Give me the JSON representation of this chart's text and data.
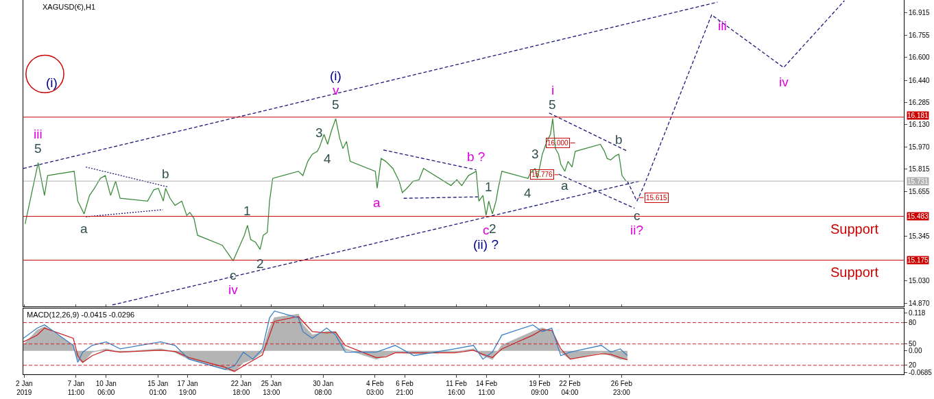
{
  "chart_data": [
    {
      "type": "line",
      "title": "XAGUSD(€),H1",
      "xlim": [
        "2019-01-02T14:00",
        "2019-03-25T02:00"
      ],
      "xticks": [
        {
          "value": "2019-01-02T16:00",
          "label": null
        },
        {
          "value": "2019-01-07T11:00",
          "label": null
        },
        {
          "value": "2019-01-10T06:00",
          "label": null
        },
        {
          "value": "2019-01-15T01:00",
          "label": null
        },
        {
          "value": "2019-01-17T19:00",
          "label": null
        },
        {
          "value": "2019-01-22T18:00",
          "label": null
        },
        {
          "value": "2019-01-25T13:00",
          "label": null
        },
        {
          "value": "2019-01-30T08:00",
          "label": null
        },
        {
          "value": "2019-02-04T03:00",
          "label": null
        },
        {
          "value": "2019-02-06T21:00",
          "label": null
        },
        {
          "value": "2019-02-11T16:00",
          "label": null
        },
        {
          "value": "2019-02-14T11:00",
          "label": null
        },
        {
          "value": "2019-02-19T09:00",
          "label": null
        },
        {
          "value": "2019-02-22T04:00",
          "label": null
        },
        {
          "value": "2019-02-26T23:00",
          "label": null
        }
      ],
      "ylim": [
        14.851,
        17.005
      ],
      "yticks": [
        {
          "value": 16.915,
          "label": "16.915"
        },
        {
          "value": 16.755,
          "label": "16.755"
        },
        {
          "value": 16.6,
          "label": "16.600"
        },
        {
          "value": 16.44,
          "label": "16.440"
        },
        {
          "value": 16.285,
          "label": "16.285"
        },
        {
          "value": 16.13,
          "label": "16.130"
        },
        {
          "value": 15.97,
          "label": "15.970"
        },
        {
          "value": 15.815,
          "label": "15.815"
        },
        {
          "value": 15.655,
          "label": "15.655"
        },
        {
          "value": 15.345,
          "label": "15.345"
        },
        {
          "value": 15.03,
          "label": "15.030"
        },
        {
          "value": 14.87,
          "label": "14.870"
        }
      ],
      "tick_labels": "y",
      "line_style": "solid",
      "marker": "none",
      "series": [
        {
          "color": "#3c8c3c",
          "x": [
            "2019-01-02T18:00",
            "2019-01-03T23:00",
            "2019-01-04T13:00",
            "2019-01-04T20:00",
            "2019-01-07T07:00",
            "2019-01-07T15:00",
            "2019-01-08T05:00",
            "2019-01-08T17:00",
            "2019-01-09T04:00",
            "2019-01-09T17:00",
            "2019-01-10T04:00",
            "2019-01-10T16:00",
            "2019-01-11T03:00",
            "2019-01-11T13:00",
            "2019-01-14T02:00",
            "2019-01-14T16:00",
            "2019-01-15T02:00",
            "2019-01-15T13:00",
            "2019-01-15T18:00",
            "2019-01-16T04:00",
            "2019-01-16T15:00",
            "2019-01-17T06:00",
            "2019-01-17T17:00",
            "2019-01-18T00:00",
            "2019-01-18T09:00",
            "2019-01-18T17:00",
            "2019-01-21T00:00",
            "2019-01-21T11:00",
            "2019-01-22T00:00",
            "2019-01-22T11:00",
            "2019-01-23T01:00",
            "2019-01-23T08:00",
            "2019-01-23T15:00",
            "2019-01-24T02:00",
            "2019-01-24T12:00",
            "2019-01-24T19:00",
            "2019-01-25T04:00",
            "2019-01-25T09:00",
            "2019-01-25T16:00",
            "2019-01-28T01:00",
            "2019-01-28T11:00",
            "2019-01-28T22:00",
            "2019-01-29T08:00",
            "2019-01-29T19:00",
            "2019-01-30T00:00",
            "2019-01-30T10:00",
            "2019-01-30T18:00",
            "2019-01-31T02:00",
            "2019-01-31T12:00",
            "2019-01-31T21:00",
            "2019-02-01T04:00",
            "2019-02-01T12:00",
            "2019-02-01T20:00",
            "2019-02-04T04:00",
            "2019-02-04T08:00",
            "2019-02-04T17:00",
            "2019-02-05T03:00",
            "2019-02-05T19:00",
            "2019-02-06T09:00",
            "2019-02-06T16:00",
            "2019-02-07T02:00",
            "2019-02-07T16:00",
            "2019-02-08T05:00",
            "2019-02-08T15:00",
            "2019-02-11T04:00",
            "2019-02-11T17:00",
            "2019-02-12T04:00",
            "2019-02-12T19:00",
            "2019-02-13T12:00",
            "2019-02-13T18:00",
            "2019-02-14T03:00",
            "2019-02-14T10:00",
            "2019-02-14T16:00",
            "2019-02-15T00:00",
            "2019-02-15T08:00",
            "2019-02-15T13:00",
            "2019-02-15T21:00",
            "2019-02-18T07:00",
            "2019-02-18T13:00",
            "2019-02-18T23:00",
            "2019-02-19T04:00",
            "2019-02-19T15:00",
            "2019-02-20T01:00",
            "2019-02-20T09:00",
            "2019-02-20T14:00",
            "2019-02-20T20:00",
            "2019-02-21T03:00",
            "2019-02-21T08:00",
            "2019-02-21T17:00",
            "2019-02-22T00:00",
            "2019-02-22T09:00",
            "2019-02-22T16:00",
            "2019-02-25T00:00",
            "2019-02-25T09:00",
            "2019-02-25T15:00",
            "2019-02-25T23:00",
            "2019-02-26T10:00",
            "2019-02-26T17:00",
            "2019-02-27T00:00",
            "2019-02-27T09:00"
          ],
          "values": [
            15.43,
            15.86,
            15.63,
            15.77,
            15.8,
            15.59,
            15.5,
            15.63,
            15.68,
            15.75,
            15.77,
            15.63,
            15.73,
            15.61,
            15.59,
            15.67,
            15.68,
            15.59,
            15.68,
            15.61,
            15.56,
            15.59,
            15.49,
            15.51,
            15.47,
            15.35,
            15.28,
            15.23,
            15.17,
            15.25,
            15.35,
            15.42,
            15.32,
            15.3,
            15.25,
            15.35,
            15.37,
            15.59,
            15.75,
            15.8,
            15.77,
            15.87,
            15.92,
            15.94,
            15.97,
            16.06,
            15.99,
            16.08,
            16.17,
            16.03,
            15.96,
            16.01,
            15.87,
            15.8,
            15.68,
            15.89,
            15.87,
            15.82,
            15.73,
            15.65,
            15.68,
            15.73,
            15.74,
            15.82,
            15.7,
            15.74,
            15.7,
            15.77,
            15.8,
            15.59,
            15.63,
            15.49,
            15.59,
            15.5,
            15.59,
            15.68,
            15.8,
            15.75,
            15.79,
            15.82,
            15.75,
            15.92,
            16.01,
            16.06,
            16.17,
            15.96,
            15.92,
            15.85,
            15.8,
            15.87,
            15.83,
            15.94,
            15.99,
            15.94,
            15.89,
            15.88,
            15.91,
            15.92,
            15.77,
            15.73
          ]
        },
        {
          "color": "#1a1a7a",
          "line_style": "dashed",
          "x": [
            "2019-01-02T14:00",
            "2019-03-07T20:00"
          ],
          "values": [
            15.82,
            16.99
          ]
        },
        {
          "color": "#1a1a7a",
          "line_style": "dashed",
          "x": [
            "2019-01-10T20:00",
            "2019-02-28T14:00"
          ],
          "values": [
            14.86,
            15.73
          ]
        },
        {
          "color": "#1a1a7a",
          "line_style": "dotted",
          "x": [
            "2019-01-08T09:00",
            "2019-01-15T23:00"
          ],
          "values": [
            15.83,
            15.69
          ]
        },
        {
          "color": "#1a1a7a",
          "line_style": "dotted",
          "x": [
            "2019-01-08T09:00",
            "2019-01-15T12:00"
          ],
          "values": [
            15.48,
            15.53
          ]
        },
        {
          "color": "#1a1a7a",
          "line_style": "dashed",
          "x": [
            "2019-02-04T22:00",
            "2019-02-13T12:00"
          ],
          "values": [
            15.95,
            15.81
          ]
        },
        {
          "color": "#1a1a7a",
          "line_style": "dashed",
          "x": [
            "2019-02-06T19:00",
            "2019-02-13T16:00"
          ],
          "values": [
            15.61,
            15.62
          ]
        },
        {
          "color": "#1a1a7a",
          "line_style": "dashed",
          "x": [
            "2019-02-20T06:00",
            "2019-02-27T13:00"
          ],
          "values": [
            16.21,
            15.94
          ]
        },
        {
          "color": "#1a1a7a",
          "line_style": "dashed",
          "x": [
            "2019-02-21T03:00",
            "2019-02-28T04:00"
          ],
          "values": [
            15.78,
            15.54
          ]
        },
        {
          "color": "#1a1a7a",
          "line_style": "dashed",
          "x": [
            "2019-02-27T12:00",
            "2019-02-28T09:00",
            "2019-03-01T01:00",
            "2019-03-07T07:00",
            "2019-03-13T23:00",
            "2019-03-19T14:00"
          ],
          "values": [
            15.73,
            15.59,
            15.7,
            16.9,
            16.53,
            17.0
          ]
        },
        {
          "color": "#cc0000",
          "x": [
            "2019-02-22T05:00",
            "2019-02-22T16:00"
          ],
          "values": [
            16.0,
            16.0
          ]
        },
        {
          "color": "#cc0000",
          "x": [
            "2019-02-20T18:00",
            "2019-02-21T03:00"
          ],
          "values": [
            15.776,
            15.776
          ]
        },
        {
          "color": "#cc0000",
          "x": [
            "2019-02-28T13:00",
            "2019-03-01T00:00"
          ],
          "values": [
            15.615,
            15.615
          ]
        }
      ],
      "ref_lines": [
        {
          "axis": "y",
          "value": 16.181,
          "label": "16.181",
          "color": "#cc0000"
        },
        {
          "axis": "y",
          "value": 15.483,
          "label": "15.483",
          "color": "#cc0000"
        },
        {
          "axis": "y",
          "value": 15.175,
          "label": "15.175",
          "color": "#cc0000"
        },
        {
          "axis": "y",
          "value": 15.731,
          "label": "15.731",
          "color": "#b0b0b0"
        }
      ],
      "annotations": [
        {
          "text": "5",
          "x": "2019-01-03T23:00",
          "y": 15.86
        },
        {
          "text": "iii",
          "x": "2019-01-03T23:00",
          "y": 15.86
        },
        {
          "text": "a",
          "x": "2019-01-08T05:00",
          "y": 15.5
        },
        {
          "text": "b",
          "x": "2019-01-15T18:00",
          "y": 15.68
        },
        {
          "text": "1",
          "x": "2019-01-23T08:00",
          "y": 15.42
        },
        {
          "text": "2",
          "x": "2019-01-24T12:00",
          "y": 15.25
        },
        {
          "text": "c",
          "x": "2019-01-22T00:00",
          "y": 15.17
        },
        {
          "text": "iv",
          "x": "2019-01-22T00:00",
          "y": 15.17
        },
        {
          "text": "3",
          "x": "2019-01-30T00:00",
          "y": 15.97
        },
        {
          "text": "4",
          "x": "2019-01-30T18:00",
          "y": 15.99
        },
        {
          "text": "5",
          "x": "2019-01-31T12:00",
          "y": 16.17
        },
        {
          "text": "v",
          "x": "2019-01-31T12:00",
          "y": 16.17
        },
        {
          "text": "(i)",
          "x": "2019-01-31T12:00",
          "y": 16.17
        },
        {
          "text": "a",
          "x": "2019-02-04T08:00",
          "y": 15.68
        },
        {
          "text": "b ?",
          "x": "2019-02-13T12:00",
          "y": 15.8
        },
        {
          "text": "1",
          "x": "2019-02-14T16:00",
          "y": 15.59
        },
        {
          "text": "2",
          "x": "2019-02-15T00:00",
          "y": 15.5
        },
        {
          "text": "c",
          "x": "2019-02-14T10:00",
          "y": 15.49
        },
        {
          "text": "(ii) ?",
          "x": "2019-02-14T10:00",
          "y": 15.49
        },
        {
          "text": "3",
          "x": "2019-02-18T23:00",
          "y": 15.82
        },
        {
          "text": "4",
          "x": "2019-02-18T07:00",
          "y": 15.75
        },
        {
          "text": "5",
          "x": "2019-02-20T14:00",
          "y": 16.17
        },
        {
          "text": "i",
          "x": "2019-02-20T14:00",
          "y": 16.17
        },
        {
          "text": "a",
          "x": "2019-02-21T17:00",
          "y": 15.8
        },
        {
          "text": "b",
          "x": "2019-02-26T17:00",
          "y": 15.92
        },
        {
          "text": "c",
          "x": "2019-02-28T09:00",
          "y": 15.59
        },
        {
          "text": "ii?",
          "x": "2019-02-28T09:00",
          "y": 15.59
        },
        {
          "text": "iii",
          "x": "2019-03-07T07:00",
          "y": 16.9
        },
        {
          "text": "iv",
          "x": "2019-03-13T23:00",
          "y": 16.53
        },
        {
          "text": "16.000",
          "x": "2019-02-22T05:00",
          "y": 16.0
        },
        {
          "text": "15.776",
          "x": "2019-02-20T18:00",
          "y": 15.776
        },
        {
          "text": "15.615",
          "x": "2019-03-01T00:00",
          "y": 15.615
        },
        {
          "text": "Support",
          "x": "2019-03-20T13:00",
          "y": 15.483
        },
        {
          "text": "Support",
          "x": "2019-03-20T13:00",
          "y": 15.175
        },
        "(i)"
      ]
    },
    {
      "type": "line",
      "title": "MACD(12,26,9) -0.0415 -0.0296",
      "xlim": [
        "2019-01-02T14:00",
        "2019-03-25T02:00"
      ],
      "xticks": [
        {
          "value": "2019-01-02T16:00",
          "label": "2 Jan 2019"
        },
        {
          "value": "2019-01-07T11:00",
          "label": "7 Jan 11:00"
        },
        {
          "value": "2019-01-10T06:00",
          "label": "10 Jan 06:00"
        },
        {
          "value": "2019-01-15T01:00",
          "label": "15 Jan 01:00"
        },
        {
          "value": "2019-01-17T19:00",
          "label": "17 Jan 19:00"
        },
        {
          "value": "2019-01-22T18:00",
          "label": "22 Jan 18:00"
        },
        {
          "value": "2019-01-25T13:00",
          "label": "25 Jan 13:00"
        },
        {
          "value": "2019-01-30T08:00",
          "label": "30 Jan 08:00"
        },
        {
          "value": "2019-02-04T03:00",
          "label": "4 Feb 03:00"
        },
        {
          "value": "2019-02-06T21:00",
          "label": "6 Feb 21:00"
        },
        {
          "value": "2019-02-11T16:00",
          "label": "11 Feb 16:00"
        },
        {
          "value": "2019-02-14T11:00",
          "label": "14 Feb 11:00"
        },
        {
          "value": "2019-02-19T09:00",
          "label": "19 Feb 09:00"
        },
        {
          "value": "2019-02-22T04:00",
          "label": "22 Feb 04:00"
        },
        {
          "value": "2019-02-26T23:00",
          "label": "26 Feb 23:00"
        }
      ],
      "ylim": [
        -0.0728,
        0.131
      ],
      "yticks": [
        {
          "value": 0.118,
          "label": "0.118"
        },
        {
          "value": 0,
          "label": "0.00"
        },
        {
          "value": -0.0685,
          "label": "-0.0685"
        }
      ],
      "y2lim": [
        7.5,
        99.4
      ],
      "y2ticks": [
        80,
        50,
        20
      ],
      "line_style": "solid",
      "marker": "none",
      "x": [
        "2019-01-02T14:00",
        "2019-01-03T21:00",
        "2019-01-04T13:00",
        "2019-01-07T05:00",
        "2019-01-07T15:00",
        "2019-01-08T02:00",
        "2019-01-08T23:00",
        "2019-01-10T06:00",
        "2019-01-11T13:00",
        "2019-01-15T07:00",
        "2019-01-16T15:00",
        "2019-01-17T22:00",
        "2019-01-21T06:00",
        "2019-01-22T03:00",
        "2019-01-22T23:00",
        "2019-01-23T20:00",
        "2019-01-24T17:00",
        "2019-01-25T09:00",
        "2019-01-25T20:00",
        "2019-01-28T01:00",
        "2019-01-28T11:00",
        "2019-01-29T08:00",
        "2019-01-30T16:00",
        "2019-01-31T12:00",
        "2019-02-01T09:00",
        "2019-02-04T06:00",
        "2019-02-05T03:00",
        "2019-02-06T00:00",
        "2019-02-07T18:00",
        "2019-02-11T12:00",
        "2019-02-13T06:00",
        "2019-02-14T03:00",
        "2019-02-15T00:00",
        "2019-02-15T21:00",
        "2019-02-18T18:00",
        "2019-02-19T15:00",
        "2019-02-20T12:00",
        "2019-02-21T08:00",
        "2019-02-22T05:00",
        "2019-02-25T02:00",
        "2019-02-25T23:00",
        "2019-02-26T20:00",
        "2019-02-27T12:00"
      ],
      "series": [
        {
          "type": "area",
          "color": "#b4b4b4",
          "values": [
            0.017,
            0.064,
            0.075,
            0.017,
            -0.026,
            -0.036,
            -0.004,
            0.006,
            -0.004,
            0.006,
            -0.004,
            -0.026,
            -0.058,
            -0.064,
            -0.036,
            -0.026,
            -0.004,
            0.071,
            0.103,
            0.114,
            0.081,
            0.049,
            0.06,
            0.06,
            0.006,
            -0.026,
            -0.015,
            -0.004,
            -0.009,
            -0.004,
            0.006,
            -0.015,
            -0.026,
            0.017,
            0.06,
            0.071,
            0.06,
            -0.004,
            -0.026,
            -0.004,
            -0.015,
            -0.026,
            -0.026
          ]
        },
        {
          "color": "#cc2222",
          "values": [
            0.028,
            0.049,
            0.071,
            0.039,
            -0.015,
            -0.036,
            -0.015,
            0.002,
            -0.004,
            0.002,
            -0.002,
            -0.021,
            -0.051,
            -0.064,
            -0.047,
            -0.03,
            -0.013,
            0.049,
            0.092,
            0.107,
            0.092,
            0.06,
            0.056,
            0.058,
            0.017,
            -0.021,
            -0.019,
            -0.006,
            -0.006,
            -0.006,
            0.002,
            -0.011,
            -0.021,
            0.006,
            0.049,
            0.066,
            0.064,
            0.006,
            -0.026,
            -0.009,
            -0.011,
            -0.021,
            -0.028
          ]
        },
        {
          "color": "#3a7fc4",
          "values": [
            0.039,
            0.071,
            0.081,
            0.017,
            -0.036,
            -0.004,
            0.017,
            0.028,
            0.006,
            0.028,
            0.017,
            -0.026,
            -0.058,
            -0.047,
            -0.004,
            -0.026,
            0.006,
            0.103,
            0.124,
            0.103,
            0.06,
            0.039,
            0.071,
            0.049,
            -0.004,
            -0.004,
            0.006,
            0.017,
            -0.015,
            0.006,
            0.017,
            -0.026,
            -0.004,
            0.049,
            0.081,
            0.06,
            0.071,
            -0.015,
            -0.004,
            0.017,
            -0.004,
            0.006,
            -0.015
          ]
        }
      ],
      "ref_lines": [
        {
          "axis": "y2",
          "value": 80,
          "color": "#cc2222",
          "line_style": "dashed"
        },
        {
          "axis": "y2",
          "value": 50,
          "color": "#cc2222",
          "line_style": "dashed"
        },
        {
          "axis": "y2",
          "value": 20,
          "color": "#cc2222",
          "line_style": "dashed"
        }
      ]
    }
  ]
}
